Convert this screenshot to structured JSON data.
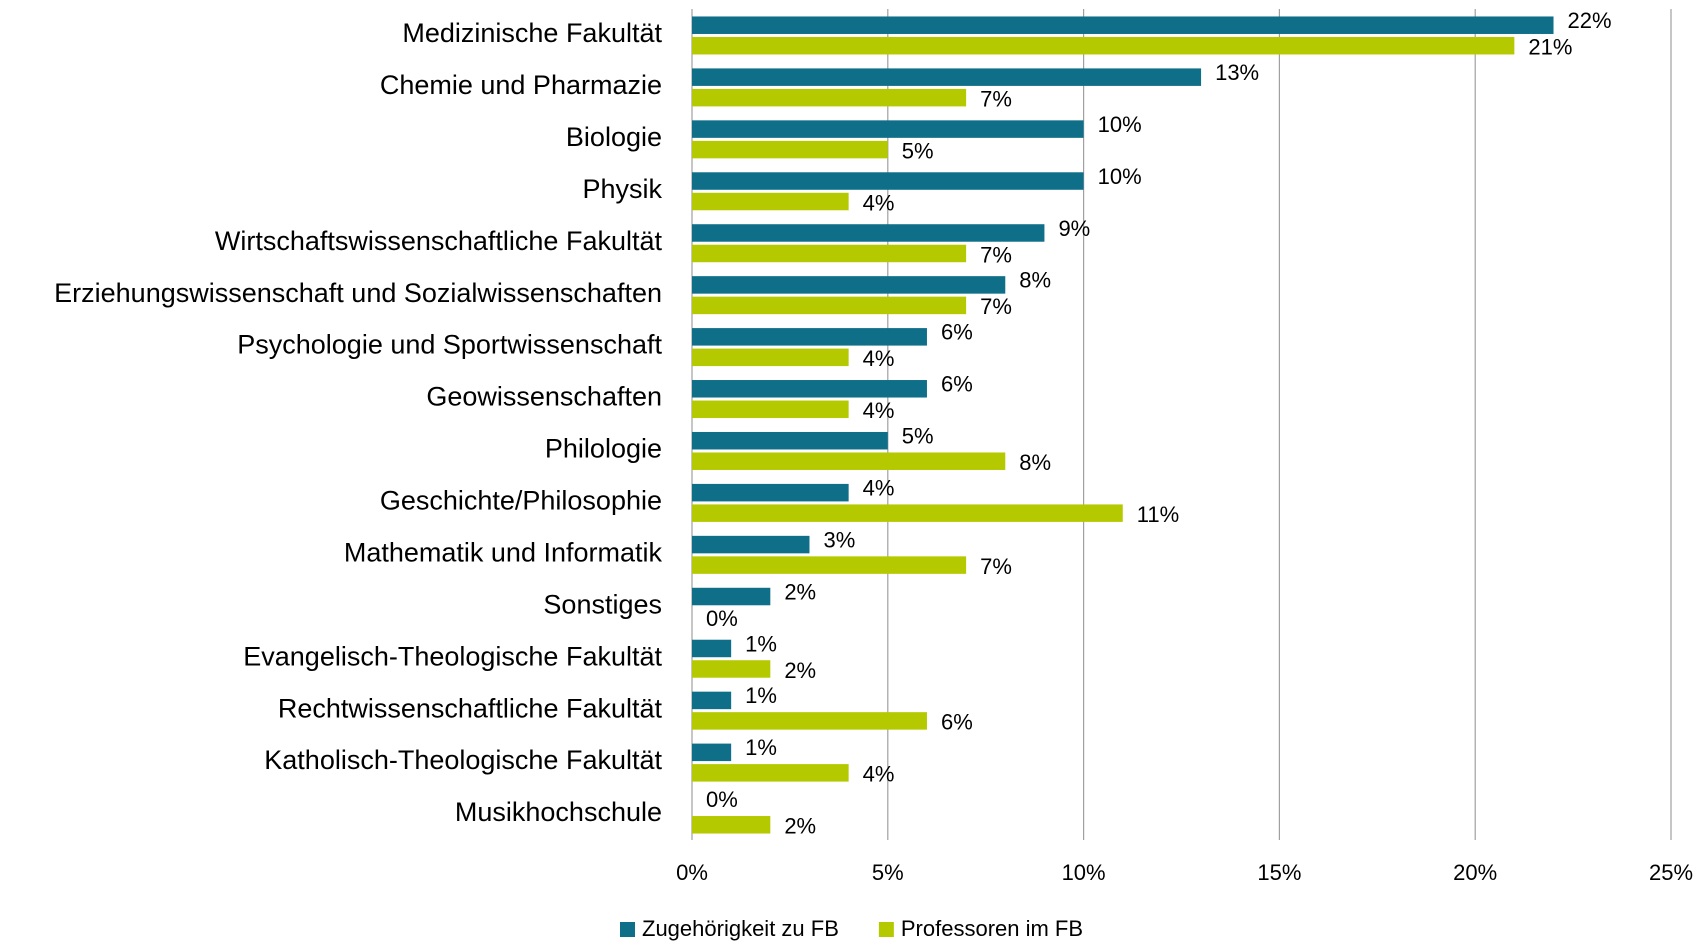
{
  "chart_data": {
    "type": "hbar",
    "categories": [
      "Medizinische Fakultät",
      "Chemie und Pharmazie",
      "Biologie",
      "Physik",
      "Wirtschaftswissenschaftliche Fakultät",
      "Erziehungswissenschaft und Sozialwissenschaften",
      "Psychologie und Sportwissenschaft",
      "Geowissenschaften",
      "Philologie",
      "Geschichte/Philosophie",
      "Mathematik und Informatik",
      "Sonstiges",
      "Evangelisch-Theologische Fakultät",
      "Rechtwissenschaftliche Fakultät ",
      "Katholisch-Theologische Fakultät",
      "Musikhochschule"
    ],
    "series": [
      {
        "name": "Zugehörigkeit zu FB",
        "color": "#0f6e88",
        "values": [
          22,
          13,
          10,
          10,
          9,
          8,
          6,
          6,
          5,
          4,
          3,
          2,
          1,
          1,
          1,
          0
        ],
        "value_labels": [
          "22%",
          "13%",
          "10%",
          "10%",
          "9%",
          "8%",
          "6%",
          "6%",
          "5%",
          "4%",
          "3%",
          "2%",
          "1%",
          "1%",
          "1%",
          "0%"
        ]
      },
      {
        "name": "Professoren im FB",
        "color": "#b5c900",
        "values": [
          21,
          7,
          5,
          4,
          7,
          7,
          4,
          4,
          8,
          11,
          7,
          0,
          2,
          6,
          4,
          2
        ],
        "value_labels": [
          "21%",
          "7%",
          "5%",
          "4%",
          "7%",
          "7%",
          "4%",
          "4%",
          "8%",
          "11%",
          "7%",
          "0%",
          "2%",
          "6%",
          "4%",
          "2%"
        ]
      }
    ],
    "xlim": [
      0,
      25
    ],
    "xticks": [
      {
        "value": 0,
        "label": "0%"
      },
      {
        "value": 5,
        "label": "5%"
      },
      {
        "value": 10,
        "label": "10%"
      },
      {
        "value": 15,
        "label": "15%"
      },
      {
        "value": 20,
        "label": "20%"
      },
      {
        "value": 25,
        "label": "25%"
      }
    ],
    "grid": true,
    "legend": "bottom"
  }
}
